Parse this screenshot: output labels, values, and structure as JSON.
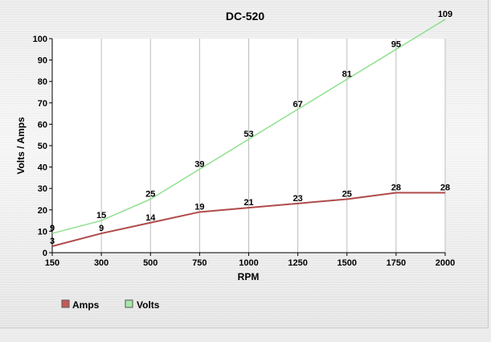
{
  "chart_data": {
    "type": "line",
    "title": "DC-520",
    "xlabel": "RPM",
    "ylabel": "Volts / Amps",
    "categories": [
      "150",
      "300",
      "500",
      "750",
      "1000",
      "1250",
      "1500",
      "1750",
      "2000"
    ],
    "ylim": [
      0,
      100
    ],
    "yticks": [
      "0",
      "10",
      "20",
      "30",
      "40",
      "50",
      "60",
      "70",
      "80",
      "90",
      "100"
    ],
    "grid": "vertical",
    "legend_position": "bottom-left",
    "series": [
      {
        "name": "Amps",
        "values": [
          3,
          9,
          14,
          19,
          21,
          23,
          25,
          28,
          28
        ],
        "color": "#b04a4a",
        "swatch": "#c65a5a"
      },
      {
        "name": "Volts",
        "values": [
          9,
          15,
          25,
          39,
          53,
          67,
          81,
          95,
          109
        ],
        "color": "#8fe08f",
        "swatch": "#a8e8a8"
      }
    ]
  }
}
